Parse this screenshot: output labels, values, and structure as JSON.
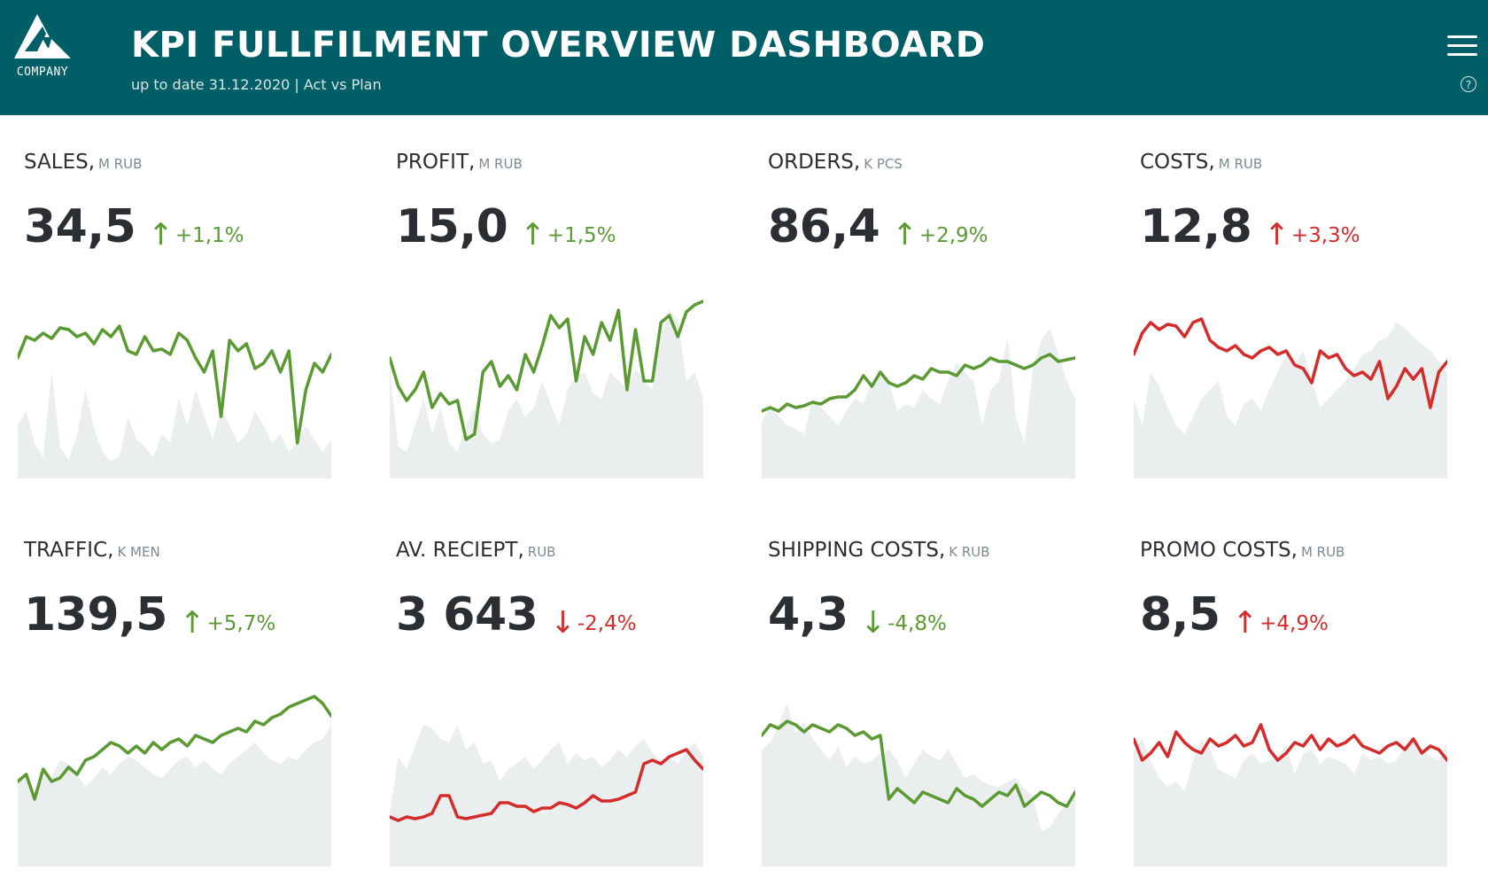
{
  "header": {
    "logo_text": "COMPANY",
    "title": "KPI FULLFILMENT OVERVIEW DASHBOARD",
    "subtitle": "up to date 31.12.2020  |  Act vs Plan",
    "menu_icon": "hamburger-menu-icon",
    "help_icon": "question-circle-icon"
  },
  "colors": {
    "header_bg": "#005f66",
    "positive": "#5b9a32",
    "negative": "#d42b2b",
    "plan_area": "#eaeeee"
  },
  "kpis": [
    {
      "name": "SALES,",
      "unit": "M RUB",
      "value": "34,5",
      "arrow": "↑",
      "delta": "+1,1%",
      "status": "positive"
    },
    {
      "name": "PROFIT,",
      "unit": "M RUB",
      "value": "15,0",
      "arrow": "↑",
      "delta": "+1,5%",
      "status": "positive"
    },
    {
      "name": "ORDERS,",
      "unit": "K PCS",
      "value": "86,4",
      "arrow": "↑",
      "delta": "+2,9%",
      "status": "positive"
    },
    {
      "name": "COSTS,",
      "unit": "M RUB",
      "value": "12,8",
      "arrow": "↑",
      "delta": "+3,3%",
      "status": "negative"
    },
    {
      "name": "TRAFFIC,",
      "unit": "K MEN",
      "value": "139,5",
      "arrow": "↑",
      "delta": "+5,7%",
      "status": "positive"
    },
    {
      "name": "AV. RECIEPT,",
      "unit": "RUB",
      "value": "3 643",
      "arrow": "↓",
      "delta": "-2,4%",
      "status": "negative"
    },
    {
      "name": "SHIPPING COSTS,",
      "unit": "K RUB",
      "value": "4,3",
      "arrow": "↓",
      "delta": "-4,8%",
      "status": "positive"
    },
    {
      "name": "PROMO COSTS,",
      "unit": "M RUB",
      "value": "8,5",
      "arrow": "↑",
      "delta": "+4,9%",
      "status": "negative"
    }
  ],
  "chart_data": [
    {
      "type": "area",
      "title": "",
      "ylim": [
        0,
        100
      ],
      "series": [
        {
          "values": [
            30,
            38,
            20,
            12,
            60,
            18,
            10,
            25,
            50,
            28,
            15,
            10,
            12,
            35,
            22,
            18,
            12,
            25,
            20,
            45,
            30,
            50,
            35,
            22,
            40,
            30,
            20,
            25,
            38,
            30,
            20,
            25,
            15,
            20,
            30,
            22,
            15,
            22
          ]
        },
        {
          "values": [
            68,
            80,
            78,
            82,
            79,
            85,
            84,
            80,
            82,
            76,
            84,
            80,
            86,
            72,
            70,
            80,
            72,
            73,
            70,
            82,
            78,
            68,
            60,
            72,
            35,
            78,
            72,
            76,
            62,
            65,
            72,
            60,
            72,
            20,
            50,
            65,
            60,
            70
          ]
        }
      ]
    },
    {
      "type": "area",
      "title": "",
      "ylim": [
        0,
        100
      ],
      "series": [
        {
          "values": [
            62,
            18,
            15,
            30,
            45,
            25,
            40,
            20,
            15,
            30,
            40,
            25,
            20,
            22,
            38,
            45,
            35,
            40,
            55,
            42,
            30,
            50,
            58,
            60,
            48,
            45,
            60,
            55,
            50,
            62,
            55,
            50,
            80,
            95,
            90,
            55,
            60,
            45
          ]
        },
        {
          "values": [
            68,
            52,
            44,
            50,
            60,
            40,
            48,
            42,
            44,
            22,
            25,
            60,
            66,
            52,
            58,
            50,
            70,
            60,
            75,
            92,
            85,
            90,
            55,
            80,
            70,
            88,
            78,
            95,
            50,
            84,
            55,
            55,
            88,
            92,
            80,
            94,
            98,
            100
          ]
        }
      ]
    },
    {
      "type": "area",
      "title": "",
      "ylim": [
        0,
        100
      ],
      "series": [
        {
          "values": [
            32,
            40,
            35,
            30,
            28,
            25,
            45,
            40,
            35,
            30,
            38,
            45,
            42,
            55,
            60,
            55,
            38,
            42,
            40,
            50,
            45,
            42,
            55,
            65,
            60,
            55,
            30,
            50,
            55,
            80,
            35,
            20,
            62,
            78,
            85,
            70,
            55,
            45
          ]
        },
        {
          "values": [
            38,
            40,
            38,
            42,
            40,
            41,
            43,
            42,
            45,
            46,
            46,
            50,
            58,
            52,
            60,
            54,
            52,
            54,
            58,
            56,
            62,
            60,
            60,
            58,
            64,
            62,
            64,
            68,
            66,
            66,
            64,
            62,
            64,
            68,
            70,
            66,
            67,
            68
          ]
        }
      ]
    },
    {
      "type": "area",
      "title": "",
      "ylim": [
        0,
        100
      ],
      "series": [
        {
          "values": [
            45,
            30,
            60,
            52,
            40,
            30,
            25,
            35,
            45,
            50,
            55,
            35,
            30,
            42,
            45,
            38,
            50,
            60,
            70,
            65,
            72,
            55,
            40,
            45,
            50,
            55,
            62,
            70,
            72,
            78,
            80,
            88,
            85,
            80,
            76,
            72,
            66,
            60
          ]
        },
        {
          "values": [
            70,
            82,
            88,
            84,
            87,
            86,
            80,
            88,
            90,
            78,
            74,
            72,
            75,
            70,
            68,
            72,
            74,
            70,
            72,
            64,
            62,
            54,
            72,
            68,
            70,
            62,
            58,
            60,
            56,
            66,
            45,
            52,
            62,
            56,
            62,
            40,
            60,
            66
          ]
        }
      ]
    },
    {
      "type": "area",
      "title": "",
      "ylim": [
        0,
        100
      ],
      "series": [
        {
          "values": [
            48,
            50,
            42,
            55,
            50,
            60,
            58,
            52,
            45,
            50,
            56,
            52,
            58,
            62,
            60,
            56,
            52,
            50,
            55,
            60,
            62,
            56,
            60,
            55,
            52,
            58,
            62,
            66,
            70,
            64,
            60,
            58,
            62,
            60,
            66,
            70,
            72,
            80
          ]
        },
        {
          "values": [
            48,
            52,
            38,
            55,
            48,
            50,
            56,
            52,
            60,
            62,
            66,
            70,
            68,
            64,
            68,
            64,
            70,
            66,
            70,
            72,
            68,
            74,
            72,
            70,
            74,
            76,
            78,
            76,
            82,
            80,
            84,
            86,
            90,
            92,
            94,
            96,
            92,
            85
          ]
        }
      ]
    },
    {
      "type": "area",
      "title": "",
      "ylim": [
        0,
        100
      ],
      "series": [
        {
          "values": [
            30,
            62,
            55,
            68,
            80,
            78,
            72,
            70,
            80,
            66,
            70,
            58,
            60,
            48,
            55,
            58,
            62,
            55,
            60,
            66,
            70,
            58,
            64,
            60,
            62,
            56,
            60,
            66,
            62,
            68,
            72,
            64,
            60,
            62,
            58,
            65,
            70,
            62
          ]
        },
        {
          "values": [
            28,
            26,
            28,
            27,
            28,
            30,
            40,
            40,
            28,
            27,
            28,
            29,
            30,
            36,
            36,
            34,
            34,
            31,
            33,
            33,
            36,
            35,
            33,
            36,
            40,
            37,
            37,
            38,
            40,
            42,
            58,
            60,
            58,
            62,
            64,
            66,
            60,
            55
          ]
        }
      ]
    },
    {
      "type": "area",
      "title": "",
      "ylim": [
        0,
        100
      ],
      "series": [
        {
          "values": [
            66,
            70,
            80,
            92,
            75,
            82,
            72,
            66,
            60,
            68,
            56,
            62,
            58,
            60,
            64,
            66,
            60,
            50,
            58,
            66,
            62,
            60,
            66,
            58,
            50,
            52,
            48,
            46,
            45,
            48,
            50,
            44,
            40,
            20,
            22,
            30,
            35,
            45
          ]
        },
        {
          "values": [
            74,
            80,
            78,
            82,
            80,
            76,
            80,
            78,
            76,
            80,
            78,
            74,
            76,
            72,
            74,
            38,
            44,
            40,
            36,
            42,
            40,
            38,
            36,
            44,
            40,
            38,
            34,
            38,
            42,
            40,
            46,
            34,
            38,
            42,
            40,
            36,
            34,
            42
          ]
        }
      ]
    },
    {
      "type": "area",
      "title": "",
      "ylim": [
        0,
        100
      ],
      "series": [
        {
          "values": [
            66,
            72,
            60,
            50,
            45,
            48,
            42,
            60,
            72,
            66,
            55,
            52,
            50,
            60,
            64,
            58,
            60,
            62,
            68,
            52,
            64,
            66,
            58,
            62,
            60,
            58,
            52,
            64,
            60,
            62,
            58,
            60,
            68,
            72,
            66,
            62,
            60,
            70
          ]
        },
        {
          "values": [
            72,
            60,
            64,
            70,
            62,
            76,
            70,
            66,
            64,
            72,
            68,
            70,
            74,
            68,
            70,
            80,
            66,
            60,
            64,
            70,
            68,
            74,
            66,
            72,
            68,
            70,
            74,
            68,
            66,
            64,
            68,
            70,
            66,
            72,
            64,
            68,
            66,
            60
          ]
        }
      ]
    }
  ]
}
